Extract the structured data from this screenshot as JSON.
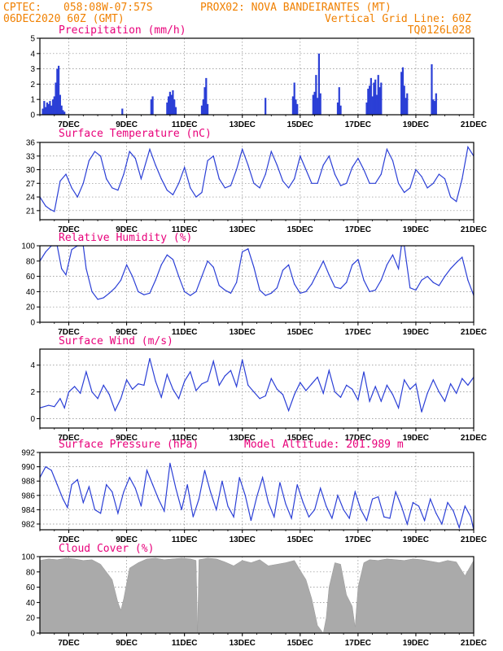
{
  "header": {
    "line1_left": "CPTEC:",
    "coords": "058:08W-07:57S",
    "location": "PROX02: NOVA BANDEIRANTES (MT)",
    "date": "06DEC2020 60Z (GMT)",
    "grid_note": "Vertical Grid Line: 60Z",
    "model_code": "TQ0126L028"
  },
  "colors": {
    "header": "#f08000",
    "title": "#e8007a",
    "line": "#2b3fd6",
    "bar": "#2b3fd6",
    "cloud": "#aaaaaa"
  },
  "chart_data": [
    {
      "type": "bar",
      "title": "Precipitation (mm/h)",
      "ylim": [
        0,
        5
      ],
      "yticks": [
        0,
        1,
        2,
        3,
        4,
        5
      ],
      "xlim": [
        6.0,
        21.0
      ],
      "xticks": [
        7,
        9,
        11,
        13,
        15,
        17,
        19,
        21
      ],
      "xtick_labels": [
        "7DEC",
        "9DEC",
        "11DEC",
        "13DEC",
        "15DEC",
        "17DEC",
        "19DEC",
        "21DEC"
      ],
      "grid": true,
      "x": [
        6.1,
        6.15,
        6.2,
        6.25,
        6.3,
        6.35,
        6.4,
        6.45,
        6.5,
        6.55,
        6.6,
        6.65,
        6.7,
        6.75,
        6.8,
        6.85,
        8.85,
        9.85,
        9.9,
        10.4,
        10.45,
        10.5,
        10.55,
        10.6,
        10.65,
        10.7,
        11.6,
        11.65,
        11.7,
        11.75,
        11.8,
        13.8,
        14.75,
        14.8,
        14.85,
        14.9,
        15.45,
        15.5,
        15.55,
        15.6,
        15.65,
        15.7,
        16.3,
        16.35,
        16.4,
        17.3,
        17.35,
        17.4,
        17.45,
        17.5,
        17.55,
        17.6,
        17.65,
        17.7,
        17.75,
        17.8,
        18.5,
        18.55,
        18.6,
        18.65,
        18.7,
        19.55,
        19.6,
        19.65,
        19.7
      ],
      "values": [
        0.4,
        0.9,
        0.5,
        0.8,
        0.7,
        0.9,
        0.6,
        1.0,
        1.2,
        2.1,
        3.0,
        3.2,
        1.3,
        0.6,
        0.3,
        0.2,
        0.4,
        1.0,
        1.2,
        0.8,
        1.2,
        1.5,
        1.3,
        1.6,
        1.0,
        0.5,
        0.6,
        1.0,
        1.8,
        2.4,
        0.7,
        1.1,
        1.2,
        2.1,
        1.0,
        0.7,
        1.3,
        1.5,
        2.6,
        1.1,
        4.0,
        1.4,
        0.8,
        1.8,
        0.6,
        0.8,
        1.7,
        1.9,
        2.4,
        1.2,
        2.1,
        2.3,
        1.3,
        2.6,
        1.8,
        2.1,
        2.8,
        3.1,
        1.9,
        1.1,
        1.4,
        3.3,
        1.0,
        0.9,
        1.4
      ]
    },
    {
      "type": "line",
      "title": "Surface Temperature (nC)",
      "ylim": [
        19,
        36
      ],
      "yticks": [
        21,
        24,
        27,
        30,
        33,
        36
      ],
      "xlim": [
        6.0,
        21.0
      ],
      "xticks": [
        7,
        9,
        11,
        13,
        15,
        17,
        19,
        21
      ],
      "xtick_labels": [
        "7DEC",
        "9DEC",
        "11DEC",
        "13DEC",
        "15DEC",
        "17DEC",
        "19DEC",
        "21DEC"
      ],
      "grid": true,
      "x": [
        6.0,
        6.2,
        6.35,
        6.5,
        6.7,
        6.9,
        7.1,
        7.3,
        7.5,
        7.7,
        7.9,
        8.1,
        8.3,
        8.5,
        8.7,
        8.9,
        9.1,
        9.3,
        9.5,
        9.8,
        10.0,
        10.2,
        10.4,
        10.6,
        10.8,
        11.0,
        11.2,
        11.4,
        11.6,
        11.8,
        12.0,
        12.2,
        12.4,
        12.6,
        12.8,
        13.0,
        13.2,
        13.4,
        13.6,
        13.8,
        14.0,
        14.2,
        14.4,
        14.6,
        14.8,
        15.0,
        15.2,
        15.4,
        15.6,
        15.8,
        16.0,
        16.2,
        16.4,
        16.6,
        16.8,
        17.0,
        17.2,
        17.4,
        17.6,
        17.8,
        18.0,
        18.2,
        18.4,
        18.6,
        18.8,
        19.0,
        19.2,
        19.4,
        19.6,
        19.8,
        20.0,
        20.2,
        20.4,
        20.6,
        20.8,
        21.0
      ],
      "values": [
        24,
        22,
        21.3,
        20.8,
        27.5,
        29,
        26,
        24,
        27,
        32,
        34,
        33,
        28,
        26,
        25.5,
        29,
        34,
        32.5,
        28,
        34.5,
        31,
        28,
        25.5,
        24.5,
        27,
        30.5,
        26,
        24,
        25,
        32,
        33,
        28,
        26,
        26.5,
        30,
        34.5,
        31,
        27,
        26,
        29,
        34,
        31,
        27.5,
        26,
        28,
        33,
        30,
        27,
        27,
        31,
        33,
        29,
        26.5,
        27,
        30.5,
        32.5,
        30,
        27,
        27,
        29,
        34.5,
        32,
        27,
        25,
        26,
        30,
        28.5,
        26,
        27,
        29,
        28,
        24,
        23,
        28,
        35,
        33
      ]
    },
    {
      "type": "line",
      "title": "Relative Humidity (%)",
      "ylim": [
        0,
        100
      ],
      "yticks": [
        0,
        20,
        40,
        60,
        80,
        100
      ],
      "xlim": [
        6.0,
        21.0
      ],
      "xticks": [
        7,
        9,
        11,
        13,
        15,
        17,
        19,
        21
      ],
      "xtick_labels": [
        "7DEC",
        "9DEC",
        "11DEC",
        "13DEC",
        "15DEC",
        "17DEC",
        "19DEC",
        "21DEC"
      ],
      "grid": true,
      "x": [
        6.0,
        6.2,
        6.4,
        6.6,
        6.75,
        6.9,
        7.1,
        7.3,
        7.5,
        7.6,
        7.8,
        8.0,
        8.2,
        8.4,
        8.6,
        8.8,
        9.0,
        9.2,
        9.4,
        9.6,
        9.8,
        10.0,
        10.2,
        10.4,
        10.6,
        10.8,
        11.0,
        11.2,
        11.4,
        11.6,
        11.8,
        12.0,
        12.2,
        12.4,
        12.6,
        12.8,
        13.0,
        13.2,
        13.4,
        13.6,
        13.8,
        14.0,
        14.2,
        14.4,
        14.6,
        14.8,
        15.0,
        15.2,
        15.4,
        15.6,
        15.8,
        16.0,
        16.2,
        16.4,
        16.6,
        16.8,
        17.0,
        17.2,
        17.4,
        17.6,
        17.8,
        18.0,
        18.2,
        18.4,
        18.5,
        18.6,
        18.8,
        19.0,
        19.2,
        19.4,
        19.6,
        19.8,
        20.0,
        20.2,
        20.4,
        20.6,
        20.8,
        21.0
      ],
      "values": [
        80,
        92,
        100,
        100,
        70,
        62,
        95,
        100,
        100,
        70,
        40,
        30,
        32,
        38,
        45,
        55,
        75,
        60,
        40,
        36,
        38,
        55,
        75,
        88,
        82,
        60,
        40,
        35,
        40,
        60,
        80,
        72,
        48,
        42,
        38,
        52,
        92,
        96,
        72,
        42,
        35,
        38,
        45,
        68,
        75,
        50,
        38,
        40,
        50,
        65,
        80,
        62,
        46,
        44,
        52,
        75,
        82,
        55,
        40,
        42,
        55,
        75,
        88,
        70,
        100,
        100,
        45,
        42,
        55,
        60,
        52,
        48,
        60,
        70,
        78,
        85,
        55,
        35
      ]
    },
    {
      "type": "line",
      "title": "Surface Wind (m/s)",
      "ylim": [
        -0.7,
        5.2
      ],
      "yticks": [
        0,
        2,
        4
      ],
      "xlim": [
        6.0,
        21.0
      ],
      "xticks": [
        7,
        9,
        11,
        13,
        15,
        17,
        19,
        21
      ],
      "xtick_labels": [
        "7DEC",
        "9DEC",
        "11DEC",
        "13DEC",
        "15DEC",
        "17DEC",
        "19DEC",
        "21DEC"
      ],
      "grid": true,
      "x": [
        6.0,
        6.3,
        6.5,
        6.7,
        6.85,
        7.0,
        7.2,
        7.4,
        7.6,
        7.8,
        8.0,
        8.2,
        8.4,
        8.6,
        8.8,
        9.0,
        9.2,
        9.4,
        9.6,
        9.8,
        10.0,
        10.2,
        10.4,
        10.6,
        10.8,
        11.0,
        11.2,
        11.4,
        11.6,
        11.8,
        12.0,
        12.2,
        12.4,
        12.6,
        12.8,
        13.0,
        13.2,
        13.4,
        13.6,
        13.8,
        14.0,
        14.2,
        14.4,
        14.6,
        14.8,
        15.0,
        15.2,
        15.4,
        15.6,
        15.8,
        16.0,
        16.2,
        16.4,
        16.6,
        16.8,
        17.0,
        17.2,
        17.4,
        17.6,
        17.8,
        18.0,
        18.2,
        18.4,
        18.6,
        18.8,
        19.0,
        19.2,
        19.4,
        19.6,
        19.8,
        20.0,
        20.2,
        20.4,
        20.6,
        20.8,
        21.0
      ],
      "values": [
        0.8,
        1.0,
        0.9,
        1.5,
        0.8,
        2.0,
        2.4,
        1.9,
        3.5,
        2.0,
        1.5,
        2.5,
        1.8,
        0.6,
        1.5,
        2.9,
        2.2,
        2.6,
        2.5,
        4.5,
        2.8,
        1.6,
        3.3,
        2.2,
        1.5,
        2.8,
        3.5,
        2.1,
        2.6,
        2.8,
        4.3,
        2.5,
        3.2,
        3.6,
        2.4,
        4.4,
        2.5,
        2.0,
        1.5,
        1.7,
        3.0,
        2.2,
        1.8,
        0.6,
        1.8,
        2.7,
        2.1,
        2.6,
        3.1,
        1.9,
        3.6,
        2.0,
        1.6,
        2.5,
        2.2,
        1.4,
        3.5,
        1.3,
        2.4,
        1.3,
        2.5,
        1.8,
        0.8,
        2.9,
        2.2,
        2.6,
        0.5,
        1.9,
        2.9,
        2.0,
        1.3,
        2.6,
        1.9,
        3.0,
        2.5,
        3.1
      ]
    },
    {
      "type": "line",
      "title": "Surface Pressure (hPa)",
      "subtitle": "Model Altitude: 201.989 m",
      "ylim": [
        981.2,
        992
      ],
      "yticks": [
        982,
        984,
        986,
        988,
        990,
        992
      ],
      "xlim": [
        6.0,
        21.0
      ],
      "xticks": [
        7,
        9,
        11,
        13,
        15,
        17,
        19,
        21
      ],
      "xtick_labels": [
        "7DEC",
        "9DEC",
        "11DEC",
        "13DEC",
        "15DEC",
        "17DEC",
        "19DEC",
        "21DEC"
      ],
      "grid": true,
      "x": [
        6.0,
        6.2,
        6.4,
        6.6,
        6.8,
        6.95,
        7.1,
        7.3,
        7.5,
        7.7,
        7.9,
        8.1,
        8.3,
        8.5,
        8.7,
        8.9,
        9.1,
        9.3,
        9.5,
        9.7,
        9.9,
        10.1,
        10.3,
        10.5,
        10.7,
        10.9,
        11.1,
        11.3,
        11.5,
        11.7,
        11.9,
        12.1,
        12.3,
        12.5,
        12.7,
        12.9,
        13.1,
        13.3,
        13.5,
        13.7,
        13.9,
        14.1,
        14.3,
        14.5,
        14.7,
        14.9,
        15.1,
        15.3,
        15.5,
        15.7,
        15.9,
        16.1,
        16.3,
        16.5,
        16.7,
        16.9,
        17.1,
        17.3,
        17.5,
        17.7,
        17.9,
        18.1,
        18.3,
        18.5,
        18.7,
        18.9,
        19.1,
        19.3,
        19.5,
        19.7,
        19.9,
        20.1,
        20.3,
        20.5,
        20.7,
        20.9,
        21.0
      ],
      "values": [
        988.5,
        990,
        989.5,
        987.5,
        985.5,
        984.3,
        987.5,
        988.2,
        985.0,
        987.2,
        984.0,
        983.5,
        987.5,
        986.5,
        983.5,
        986.5,
        988.5,
        987.0,
        984.5,
        989.5,
        987.5,
        985.5,
        983.8,
        990.5,
        987.0,
        984.0,
        987.5,
        983.0,
        985.5,
        989.5,
        986.5,
        984.0,
        988.0,
        984.5,
        983.0,
        988.5,
        986.0,
        982.5,
        985.8,
        988.5,
        985.0,
        983.0,
        987.8,
        984.8,
        982.8,
        987.5,
        985.0,
        983.0,
        984.0,
        987.0,
        984.5,
        982.8,
        986.0,
        984.0,
        982.8,
        986.5,
        984.0,
        982.5,
        985.5,
        985.8,
        983.0,
        982.8,
        986.5,
        984.5,
        982.0,
        985.0,
        984.5,
        982.5,
        985.5,
        983.5,
        982.0,
        985.0,
        983.8,
        981.5,
        984.5,
        983.0,
        981.2
      ]
    },
    {
      "type": "area",
      "title": "Cloud Cover (%)",
      "ylim": [
        0,
        100
      ],
      "yticks": [
        0,
        20,
        40,
        60,
        80,
        100
      ],
      "xlim": [
        6.0,
        21.0
      ],
      "xticks": [
        7,
        9,
        11,
        13,
        15,
        17,
        19,
        21
      ],
      "xtick_labels": [
        "7DEC",
        "9DEC",
        "11DEC",
        "13DEC",
        "15DEC",
        "17DEC",
        "19DEC",
        "21DEC"
      ],
      "grid": true,
      "x": [
        6.0,
        6.3,
        6.6,
        6.9,
        7.2,
        7.5,
        7.8,
        8.1,
        8.3,
        8.5,
        8.7,
        8.8,
        8.9,
        9.1,
        9.4,
        9.7,
        10.0,
        10.3,
        10.6,
        10.9,
        11.2,
        11.4,
        11.45,
        11.5,
        11.8,
        12.1,
        12.4,
        12.7,
        13.0,
        13.3,
        13.6,
        13.9,
        14.2,
        14.5,
        14.8,
        15.0,
        15.2,
        15.4,
        15.6,
        15.8,
        15.9,
        16.0,
        16.2,
        16.4,
        16.6,
        16.8,
        16.9,
        17.0,
        17.2,
        17.4,
        17.7,
        18.0,
        18.3,
        18.6,
        18.9,
        19.2,
        19.5,
        19.8,
        20.1,
        20.4,
        20.7,
        21.0
      ],
      "values": [
        95,
        97,
        96,
        98,
        97,
        95,
        96,
        90,
        80,
        70,
        40,
        30,
        45,
        85,
        92,
        97,
        98,
        96,
        97,
        98,
        97,
        95,
        0,
        96,
        98,
        97,
        93,
        88,
        95,
        92,
        96,
        88,
        90,
        92,
        95,
        82,
        70,
        45,
        10,
        0,
        20,
        60,
        92,
        90,
        50,
        35,
        8,
        60,
        92,
        96,
        95,
        97,
        96,
        95,
        97,
        96,
        94,
        92,
        95,
        93,
        75,
        95
      ]
    }
  ]
}
